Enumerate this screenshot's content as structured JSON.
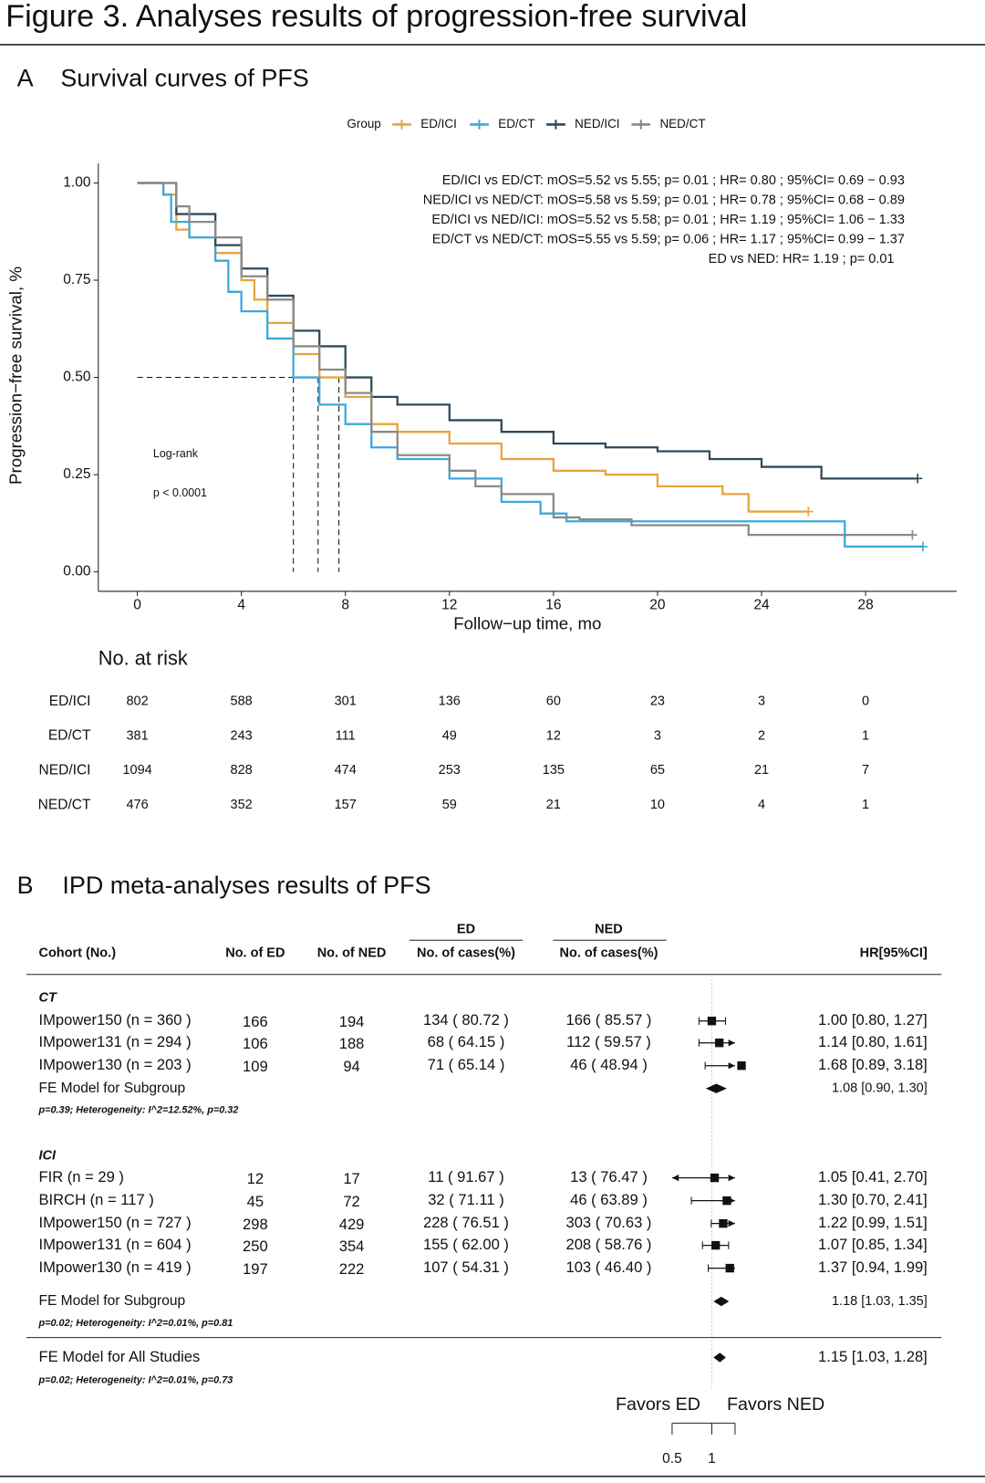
{
  "title": "Figure 3. Analyses results of progression-free survival",
  "chart_data": [
    {
      "type": "step",
      "panel": "A",
      "title": "Survival curves of PFS",
      "legend_title": "Group",
      "xlabel": "Follow−up time, mo",
      "ylabel": "Progression−free survival, %",
      "xlim": [
        -1.5,
        31.5
      ],
      "ylim": [
        -0.05,
        1.05
      ],
      "xticks": [
        0,
        4,
        8,
        12,
        16,
        20,
        24,
        28
      ],
      "yticks": [
        {
          "value": 1,
          "label": "1.00"
        },
        {
          "value": 0.75,
          "label": "0.75"
        },
        {
          "value": 0.5,
          "label": "0.50"
        },
        {
          "value": 0.25,
          "label": "0.25"
        },
        {
          "value": 0,
          "label": "0.00"
        }
      ],
      "series": [
        {
          "name": "ED/ICI",
          "color": "#e8a33d",
          "x": [
            0,
            1,
            1.5,
            2,
            3,
            4,
            4.5,
            5,
            6,
            7,
            8,
            9,
            10,
            12,
            14,
            16,
            18,
            20,
            22.5,
            23.5,
            25.8
          ],
          "values": [
            1,
            0.97,
            0.88,
            0.86,
            0.82,
            0.75,
            0.7,
            0.64,
            0.56,
            0.5,
            0.45,
            0.38,
            0.36,
            0.33,
            0.29,
            0.26,
            0.25,
            0.22,
            0.2,
            0.155,
            0.155
          ]
        },
        {
          "name": "ED/CT",
          "color": "#3ba9da",
          "x": [
            0,
            1,
            1.3,
            2,
            3,
            3.5,
            4,
            5,
            6,
            7,
            8,
            9,
            10,
            12,
            14,
            15.5,
            16.5,
            27.2,
            30.2
          ],
          "values": [
            1,
            0.97,
            0.9,
            0.86,
            0.8,
            0.72,
            0.67,
            0.6,
            0.5,
            0.43,
            0.38,
            0.32,
            0.29,
            0.24,
            0.18,
            0.15,
            0.13,
            0.065,
            0.065
          ]
        },
        {
          "name": "NED/ICI",
          "color": "#2f4a5a",
          "x": [
            0,
            1.5,
            3,
            4,
            5,
            6,
            7,
            8,
            9,
            10,
            12,
            14,
            16,
            18,
            20,
            22,
            24,
            26.3,
            30
          ],
          "values": [
            1,
            0.92,
            0.84,
            0.78,
            0.71,
            0.62,
            0.58,
            0.5,
            0.45,
            0.43,
            0.39,
            0.36,
            0.33,
            0.32,
            0.31,
            0.29,
            0.27,
            0.24,
            0.24
          ]
        },
        {
          "name": "NED/CT",
          "color": "#8c8a85",
          "x": [
            0,
            1.5,
            2,
            3,
            4,
            5,
            6,
            7,
            8,
            9,
            10,
            12,
            13,
            14,
            16,
            17,
            19,
            23.5,
            29.8
          ],
          "values": [
            1,
            0.94,
            0.9,
            0.86,
            0.76,
            0.7,
            0.58,
            0.52,
            0.46,
            0.36,
            0.3,
            0.26,
            0.22,
            0.2,
            0.14,
            0.135,
            0.12,
            0.095,
            0.095
          ]
        }
      ],
      "annotations": [
        "ED/ICI vs ED/CT: mOS=5.52 vs 5.55; p= 0.01 ; HR= 0.80 ; 95%CI= 0.69 − 0.93",
        "NED/ICI vs NED/CT: mOS=5.58 vs 5.59; p= 0.01 ; HR= 0.78 ; 95%CI= 0.68 − 0.89",
        "ED/ICI vs NED/ICI: mOS=5.52 vs 5.58; p= 0.01 ; HR= 1.19 ; 95%CI= 1.06 − 1.33",
        "ED/CT vs NED/CT: mOS=5.55 vs 5.59; p= 0.06 ; HR= 1.17 ; 95%CI= 0.99 − 1.37",
        "ED vs NED: HR= 1.19 ; p= 0.01"
      ],
      "test": [
        "Log-rank",
        "p < 0.0001"
      ],
      "median_y": 0.5,
      "median_x": [
        6.0,
        6.95,
        7.75
      ],
      "risk_table": {
        "title": "No. at risk",
        "rows": [
          {
            "name": "ED/ICI",
            "values": [
              802,
              588,
              301,
              136,
              60,
              23,
              3,
              0
            ]
          },
          {
            "name": "ED/CT",
            "values": [
              381,
              243,
              111,
              49,
              12,
              3,
              2,
              1
            ]
          },
          {
            "name": "NED/ICI",
            "values": [
              1094,
              828,
              474,
              253,
              135,
              65,
              21,
              7
            ]
          },
          {
            "name": "NED/CT",
            "values": [
              476,
              352,
              157,
              59,
              21,
              10,
              4,
              1
            ]
          }
        ]
      }
    },
    {
      "type": "forest",
      "panel": "B",
      "title": "IPD meta-analyses results of PFS",
      "headers": {
        "cohort": "Cohort (No.)",
        "n_ed": "No. of ED",
        "n_ned": "No. of NED",
        "group_ed": "ED",
        "group_ned": "NED",
        "cases_ed": "No. of cases(%)",
        "cases_ned": "No. of cases(%)",
        "hr": "HR[95%CI]"
      },
      "groups": [
        {
          "name": "CT",
          "studies": [
            {
              "cohort": "IMpower150 (n = 360 )",
              "n_ed": 166,
              "n_ned": 194,
              "cases_ed": "134 ( 80.72 )",
              "cases_ned": "166 ( 85.57 )",
              "hr": 1.0,
              "lo": 0.8,
              "hi": 1.27,
              "label": "1.00 [0.80, 1.27]"
            },
            {
              "cohort": "IMpower131 (n = 294 )",
              "n_ed": 106,
              "n_ned": 188,
              "cases_ed": "68 ( 64.15 )",
              "cases_ned": "112 ( 59.57 )",
              "hr": 1.14,
              "lo": 0.8,
              "hi": 1.61,
              "label": "1.14 [0.80, 1.61]"
            },
            {
              "cohort": "IMpower130 (n = 203 )",
              "n_ed": 109,
              "n_ned": 94,
              "cases_ed": "71 ( 65.14 )",
              "cases_ned": "46 ( 48.94 )",
              "hr": 1.68,
              "lo": 0.89,
              "hi": 3.18,
              "label": "1.68 [0.89, 3.18]"
            }
          ],
          "summary": {
            "name": "FE Model for Subgroup",
            "hr": 1.08,
            "lo": 0.9,
            "hi": 1.3,
            "label": "1.08 [0.90, 1.30]",
            "note": "p=0.39; Heterogeneity: I^2=12.52%, p=0.32"
          }
        },
        {
          "name": "ICI",
          "studies": [
            {
              "cohort": "FIR (n = 29 )",
              "n_ed": 12,
              "n_ned": 17,
              "cases_ed": "11 ( 91.67 )",
              "cases_ned": "13 ( 76.47 )",
              "hr": 1.05,
              "lo": 0.41,
              "hi": 2.7,
              "label": "1.05 [0.41, 2.70]"
            },
            {
              "cohort": "BIRCH (n = 117 )",
              "n_ed": 45,
              "n_ned": 72,
              "cases_ed": "32 ( 71.11 )",
              "cases_ned": "46 ( 63.89 )",
              "hr": 1.3,
              "lo": 0.7,
              "hi": 2.41,
              "label": "1.30 [0.70, 2.41]"
            },
            {
              "cohort": "IMpower150 (n = 727 )",
              "n_ed": 298,
              "n_ned": 429,
              "cases_ed": "228 ( 76.51 )",
              "cases_ned": "303 ( 70.63 )",
              "hr": 1.22,
              "lo": 0.99,
              "hi": 1.51,
              "label": "1.22 [0.99, 1.51]"
            },
            {
              "cohort": "IMpower131 (n = 604 )",
              "n_ed": 250,
              "n_ned": 354,
              "cases_ed": "155 ( 62.00 )",
              "cases_ned": "208 ( 58.76 )",
              "hr": 1.07,
              "lo": 0.85,
              "hi": 1.34,
              "label": "1.07 [0.85, 1.34]"
            },
            {
              "cohort": "IMpower130 (n = 419 )",
              "n_ed": 197,
              "n_ned": 222,
              "cases_ed": "107 ( 54.31 )",
              "cases_ned": "103 ( 46.40 )",
              "hr": 1.37,
              "lo": 0.94,
              "hi": 1.99,
              "label": "1.37 [0.94, 1.99]"
            }
          ],
          "summary": {
            "name": "FE Model for Subgroup",
            "hr": 1.18,
            "lo": 1.03,
            "hi": 1.35,
            "label": "1.18 [1.03, 1.35]",
            "note": "p=0.02; Heterogeneity: I^2=0.01%, p=0.81"
          }
        }
      ],
      "overall": {
        "name": "FE Model for All Studies",
        "hr": 1.15,
        "lo": 1.03,
        "hi": 1.28,
        "label": "1.15 [1.03, 1.28]",
        "note": "p=0.02; Heterogeneity: I^2=0.01%, p=0.73"
      },
      "log_x": true,
      "xlim": [
        0.5,
        1.5
      ],
      "xticks": [
        0.5,
        1
      ],
      "favors": [
        "Favors ED",
        "Favors NED"
      ]
    }
  ]
}
